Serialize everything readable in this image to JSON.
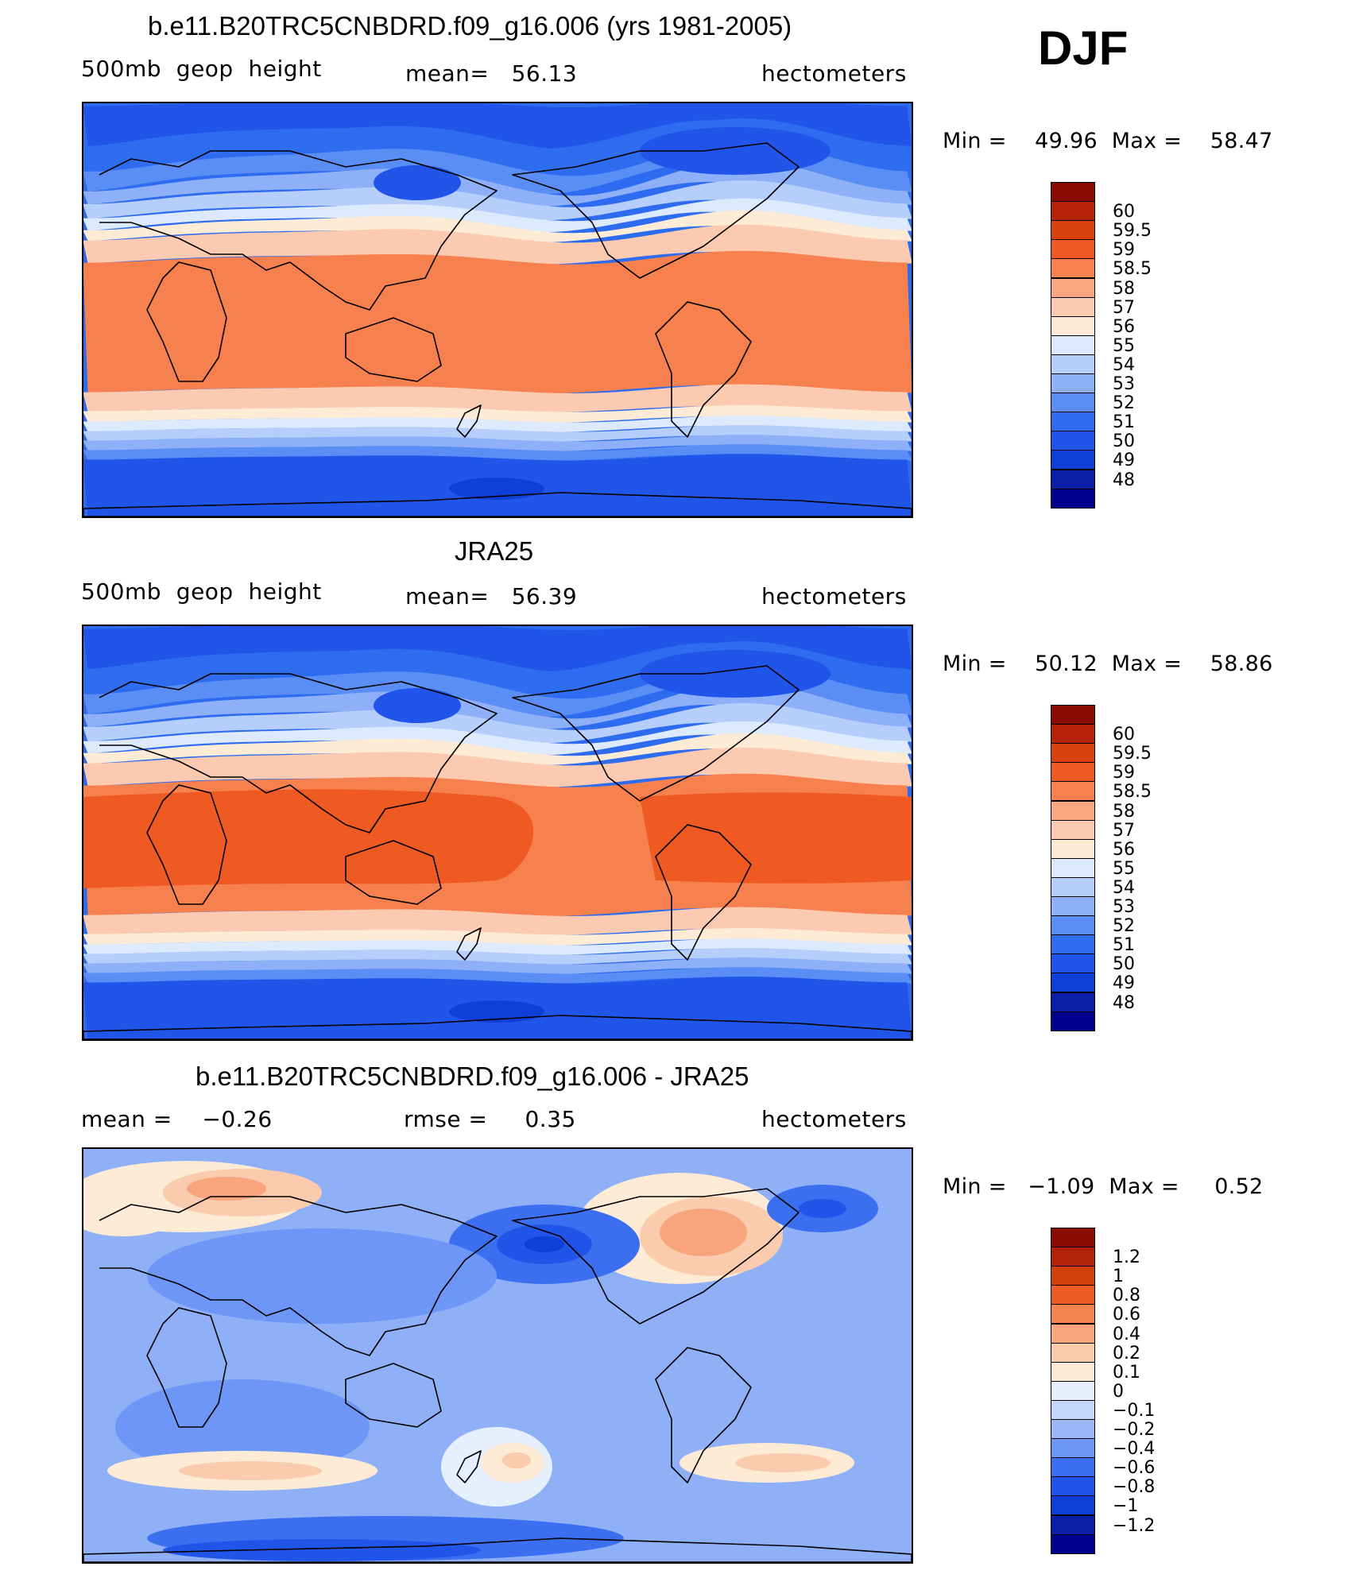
{
  "season": "DJF",
  "colors": {
    "height": [
      "#00008f",
      "#0a1fa8",
      "#0f3fd8",
      "#2155ea",
      "#2e6cf0",
      "#5a8ef5",
      "#8db0f8",
      "#b6cefb",
      "#dde9fc",
      "#fdebd6",
      "#fccab0",
      "#f9a681",
      "#f7804f",
      "#ef5a23",
      "#d9410f",
      "#b5230b",
      "#8a0a04"
    ],
    "diff": [
      "#00008f",
      "#0a1fa8",
      "#0f3fd8",
      "#2155ea",
      "#3b6ff0",
      "#6e96f6",
      "#9db8f8",
      "#c4d7fb",
      "#e6effd",
      "#fdebd6",
      "#fbcbad",
      "#f8a57e",
      "#f5834f",
      "#ed5c24",
      "#d2400d",
      "#b3230b",
      "#8a0a04"
    ]
  },
  "panels": [
    {
      "title": "b.e11.B20TRC5CNBDRD.f09_g16.006 (yrs 1981-2005)",
      "left_label": "500mb  geop  height",
      "center_label": "mean=   56.13",
      "right_label": "hectometers",
      "stats": "Min =    49.96  Max =    58.47",
      "chart_data": {
        "type": "heatmap",
        "variable": "500mb geop height",
        "units": "hectometers",
        "mean": 56.13,
        "min": 49.96,
        "max": 58.47,
        "levels": [
          "48",
          "49",
          "50",
          "51",
          "52",
          "53",
          "54",
          "55",
          "56",
          "57",
          "58",
          "58.5",
          "59",
          "59.5",
          "60"
        ]
      }
    },
    {
      "title": "JRA25",
      "left_label": "500mb  geop  height",
      "center_label": "mean=   56.39",
      "right_label": "hectometers",
      "stats": "Min =    50.12  Max =    58.86",
      "chart_data": {
        "type": "heatmap",
        "variable": "500mb geop height",
        "units": "hectometers",
        "mean": 56.39,
        "min": 50.12,
        "max": 58.86,
        "levels": [
          "48",
          "49",
          "50",
          "51",
          "52",
          "53",
          "54",
          "55",
          "56",
          "57",
          "58",
          "58.5",
          "59",
          "59.5",
          "60"
        ]
      }
    },
    {
      "title": "b.e11.B20TRC5CNBDRD.f09_g16.006 - JRA25",
      "left_label": "mean =    −0.26",
      "center_label": "rmse =     0.35",
      "right_label": "hectometers",
      "stats": "Min =   −1.09  Max =     0.52",
      "chart_data": {
        "type": "heatmap",
        "variable": "500mb geop height difference",
        "units": "hectometers",
        "mean": -0.26,
        "rmse": 0.35,
        "min": -1.09,
        "max": 0.52,
        "levels": [
          "−1.2",
          "−1",
          "−0.8",
          "−0.6",
          "−0.4",
          "−0.2",
          "−0.1",
          "0",
          "0.1",
          "0.2",
          "0.4",
          "0.6",
          "0.8",
          "1",
          "1.2"
        ]
      }
    }
  ]
}
